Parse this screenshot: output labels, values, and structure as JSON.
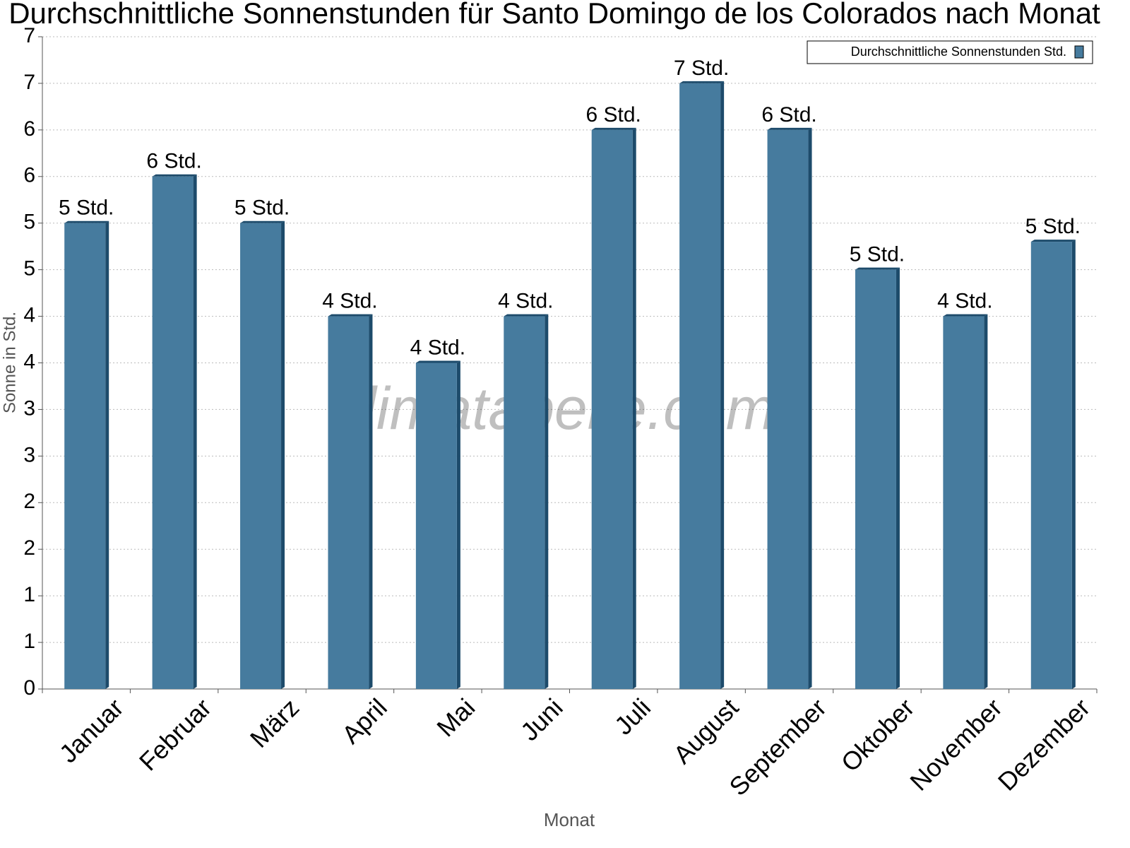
{
  "chart_data": {
    "type": "bar",
    "title": "Durchschnittliche Sonnenstunden für Santo Domingo de los Colorados nach Monat",
    "x_label": "Monat",
    "y_label": "Sonne in Std.",
    "watermark": "klimatabelle.com",
    "categories": [
      "Januar",
      "Februar",
      "März",
      "April",
      "Mai",
      "Juni",
      "Juli",
      "August",
      "September",
      "Oktober",
      "November",
      "Dezember"
    ],
    "series": [
      {
        "name": "Durchschnittliche Sonnenstunden Std.",
        "color": "#467b9e",
        "values": [
          5,
          5.5,
          5,
          4,
          3.5,
          4,
          6,
          6.5,
          6,
          4.5,
          4,
          4.8
        ],
        "value_labels": [
          "5 Std.",
          "6 Std.",
          "5 Std.",
          "4 Std.",
          "4 Std.",
          "4 Std.",
          "6 Std.",
          "7 Std.",
          "6 Std.",
          "5 Std.",
          "4 Std.",
          "5 Std."
        ]
      }
    ],
    "ylim": [
      0,
      7
    ],
    "yticks": [
      0,
      {
        "value": 0.5,
        "label": "1"
      },
      1,
      {
        "value": 1.5,
        "label": "2"
      },
      2,
      {
        "value": 2.5,
        "label": "3"
      },
      3,
      {
        "value": 3.5,
        "label": "4"
      },
      4,
      {
        "value": 4.5,
        "label": "5"
      },
      5,
      {
        "value": 5.5,
        "label": "6"
      },
      6,
      {
        "value": 6.5,
        "label": "7"
      },
      7
    ],
    "grid": true,
    "legend": "top-right"
  }
}
